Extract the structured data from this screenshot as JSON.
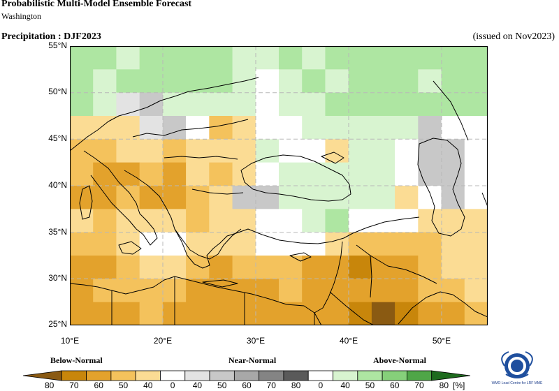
{
  "header": {
    "title": "Probabilistic Multi-Model Ensemble Forecast",
    "subtitle": "Washington",
    "variable": "Precipitation : DJF2023",
    "issued": "(issued on Nov2023)"
  },
  "map": {
    "lon_range": [
      10,
      55
    ],
    "lat_range": [
      25,
      55
    ],
    "cell_deg": 2.5,
    "grid_lines": true,
    "lat_labels": [
      "55°N",
      "50°N",
      "45°N",
      "40°N",
      "35°N",
      "30°N",
      "25°N"
    ],
    "lon_labels": [
      "10°E",
      "20°E",
      "30°E",
      "40°E",
      "50°E"
    ]
  },
  "legend": {
    "below_label": "Below-Normal",
    "near_label": "Near-Normal",
    "above_label": "Above-Normal",
    "tick_labels": [
      "80",
      "70",
      "60",
      "50",
      "40",
      "0",
      "40",
      "50",
      "60",
      "70",
      "80",
      "0",
      "40",
      "50",
      "60",
      "70",
      "80"
    ],
    "unit": "[%]",
    "colors": [
      "#8a5a12",
      "#c8860b",
      "#e3a22c",
      "#f4c25c",
      "#fbdc94",
      "#ffffff",
      "#e3e3e3",
      "#c8c8c8",
      "#a8a8a8",
      "#848484",
      "#5a5a5a",
      "#ffffff",
      "#d8f4d0",
      "#aee6a2",
      "#86d07a",
      "#4fa647",
      "#1e6b1e"
    ]
  },
  "logo": {
    "text": "WMO Lead Centre for LRF MME"
  }
}
